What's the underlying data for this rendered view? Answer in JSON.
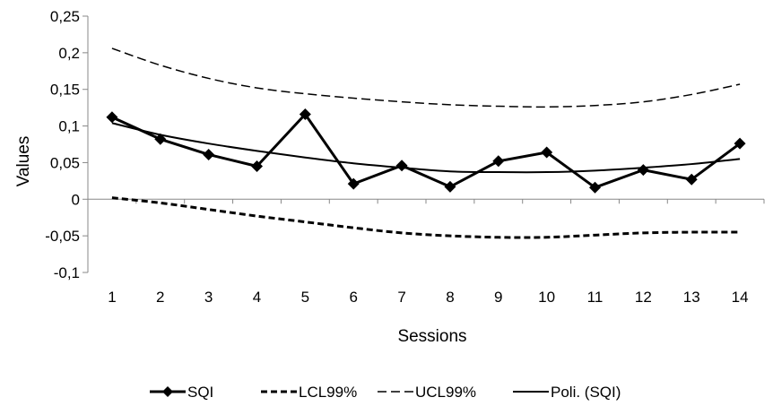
{
  "chart_data": {
    "type": "line",
    "xlabel": "Sessions",
    "ylabel": "Values",
    "categories": [
      "1",
      "2",
      "3",
      "4",
      "5",
      "6",
      "7",
      "8",
      "9",
      "10",
      "11",
      "12",
      "13",
      "14"
    ],
    "ylim": [
      -0.1,
      0.25
    ],
    "yticks": [
      -0.1,
      -0.05,
      0,
      0.05,
      0.1,
      0.15,
      0.2,
      0.25
    ],
    "ytick_labels": [
      "-0,1",
      "-0,05",
      "0",
      "0,05",
      "0,1",
      "0,15",
      "0,2",
      "0,25"
    ],
    "grid": false,
    "legend_position": "bottom",
    "series": [
      {
        "name": "SQI",
        "style": "solid-diamond",
        "color": "#000000",
        "values": [
          0.112,
          0.082,
          0.061,
          0.045,
          0.116,
          0.021,
          0.046,
          0.017,
          0.052,
          0.064,
          0.016,
          0.04,
          0.027,
          0.076
        ]
      },
      {
        "name": "LCL99%",
        "style": "bold-dashed",
        "color": "#000000",
        "values": [
          0.002,
          -0.005,
          -0.014,
          -0.023,
          -0.031,
          -0.039,
          -0.046,
          -0.05,
          -0.052,
          -0.052,
          -0.049,
          -0.046,
          -0.045,
          -0.045
        ]
      },
      {
        "name": "UCL99%",
        "style": "thin-dashed",
        "color": "#000000",
        "values": [
          0.206,
          0.183,
          0.165,
          0.152,
          0.144,
          0.138,
          0.133,
          0.129,
          0.127,
          0.126,
          0.128,
          0.133,
          0.143,
          0.157
        ]
      },
      {
        "name": "Poli. (SQI)",
        "style": "solid-thin",
        "color": "#000000",
        "values": [
          0.104,
          0.088,
          0.076,
          0.066,
          0.057,
          0.049,
          0.043,
          0.038,
          0.037,
          0.037,
          0.039,
          0.043,
          0.048,
          0.055
        ]
      }
    ]
  }
}
